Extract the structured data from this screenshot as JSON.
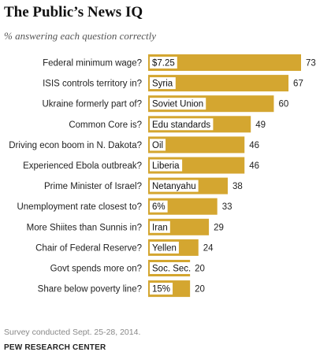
{
  "chart_data": {
    "type": "bar",
    "orientation": "horizontal",
    "title": "The Public’s News IQ",
    "subtitle": "% answering each question correctly",
    "categories": [
      "Federal minimum wage?",
      "ISIS controls territory in?",
      "Ukraine formerly part of?",
      "Common Core is?",
      "Driving econ boom in N. Dakota?",
      "Experienced Ebola outbreak?",
      "Prime Minister of Israel?",
      "Unemployment rate closest to?",
      "More Shiites than Sunnis in?",
      "Chair of Federal Reserve?",
      "Govt spends more on?",
      "Share below poverty line?"
    ],
    "answers": [
      "$7.25",
      "Syria",
      "Soviet Union",
      "Edu standards",
      "Oil",
      "Liberia",
      "Netanyahu",
      "6%",
      "Iran",
      "Yellen",
      "Soc. Sec.",
      "15%"
    ],
    "values": [
      73,
      67,
      60,
      49,
      46,
      46,
      38,
      33,
      29,
      24,
      20,
      20
    ],
    "value_labels": [
      "73",
      "67",
      "60",
      "49",
      "46",
      "46",
      "38",
      "33",
      "29",
      "24",
      "20",
      "20"
    ],
    "xlim": [
      0,
      73
    ],
    "grid": false,
    "bar_color": "#D4A630"
  },
  "footer": {
    "note": "Survey conducted Sept. 25-28, 2014.",
    "source": "PEW RESEARCH CENTER"
  }
}
